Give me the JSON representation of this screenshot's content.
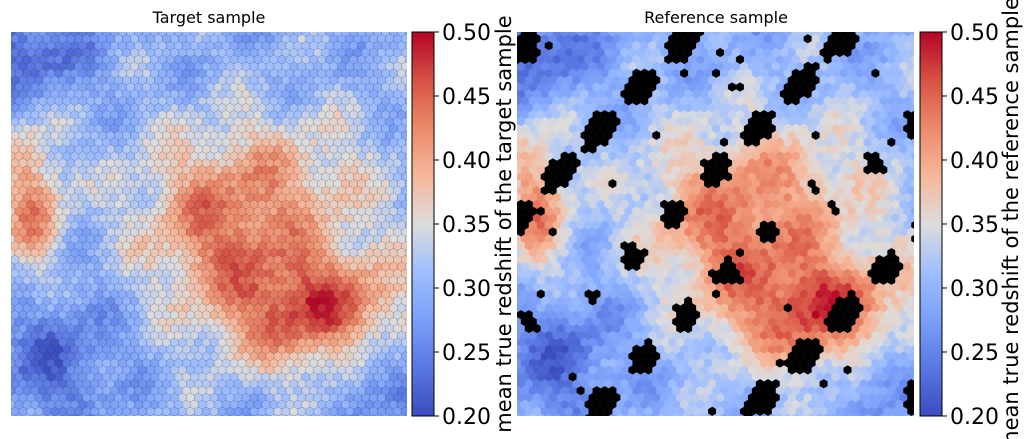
{
  "chart_data": [
    {
      "type": "heatmap",
      "title": "Target sample",
      "colorbar": {
        "label": "mean true redshift of the target sample",
        "range": [
          0.2,
          0.5
        ],
        "ticks": [
          "0.20",
          "0.25",
          "0.30",
          "0.35",
          "0.40",
          "0.45",
          "0.50"
        ],
        "colormap": "coolwarm"
      },
      "missing_color": null,
      "cell_outlines": true
    },
    {
      "type": "heatmap",
      "title": "Reference sample",
      "colorbar": {
        "label": "mean true redshift of the reference sample",
        "range": [
          0.2,
          0.5
        ],
        "ticks": [
          "0.20",
          "0.25",
          "0.30",
          "0.35",
          "0.40",
          "0.45",
          "0.50"
        ],
        "colormap": "coolwarm"
      },
      "missing_color": "#000000",
      "cell_outlines": false
    }
  ]
}
